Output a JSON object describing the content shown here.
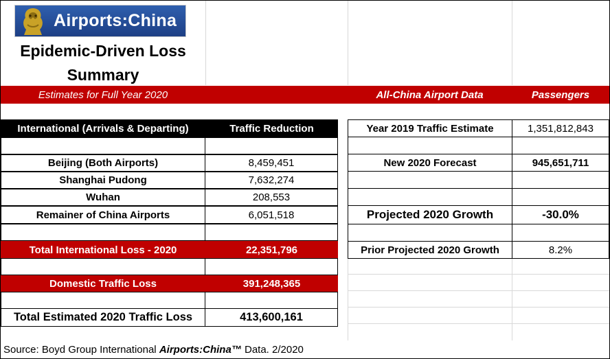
{
  "logo": {
    "text": "Airports:China",
    "mark": "dragon-emblem-icon"
  },
  "title": {
    "line1": "Epidemic-Driven Loss",
    "line2": "Summary"
  },
  "banner": {
    "left": "Estimates for Full Year 2020",
    "right_label": "All-China Airport Data",
    "right_unit": "Passengers"
  },
  "left_table": {
    "header": {
      "label": "International (Arrivals & Departing)",
      "value": "Traffic Reduction"
    },
    "rows": [
      {
        "label": "Beijing (Both Airports)",
        "value": "8,459,451"
      },
      {
        "label": "Shanghai Pudong",
        "value": "7,632,274"
      },
      {
        "label": "Wuhan",
        "value": "208,553"
      },
      {
        "label": "Remainer of China Airports",
        "value": "6,051,518"
      }
    ],
    "total_international": {
      "label": "Total International Loss - 2020",
      "value": "22,351,796"
    },
    "domestic": {
      "label": "Domestic Traffic Loss",
      "value": "391,248,365"
    },
    "grand_total": {
      "label": "Total Estimated 2020 Traffic Loss",
      "value": "413,600,161"
    }
  },
  "right_table": {
    "traffic_2019": {
      "label": "Year 2019 Traffic Estimate",
      "value": "1,351,812,843"
    },
    "forecast_2020": {
      "label": "New 2020 Forecast",
      "value": "945,651,711"
    },
    "growth_2020": {
      "label": "Projected 2020 Growth",
      "value": "-30.0%"
    },
    "prior_growth": {
      "label": "Prior Projected 2020 Growth",
      "value": "8.2%"
    }
  },
  "source": {
    "prefix": "Source: Boyd Group International ",
    "brand": "Airports:China™",
    "suffix": " Data. 2/2020"
  },
  "colors": {
    "accent_red": "#c00000",
    "header_black": "#000000",
    "logo_blue": "#2352a0"
  }
}
